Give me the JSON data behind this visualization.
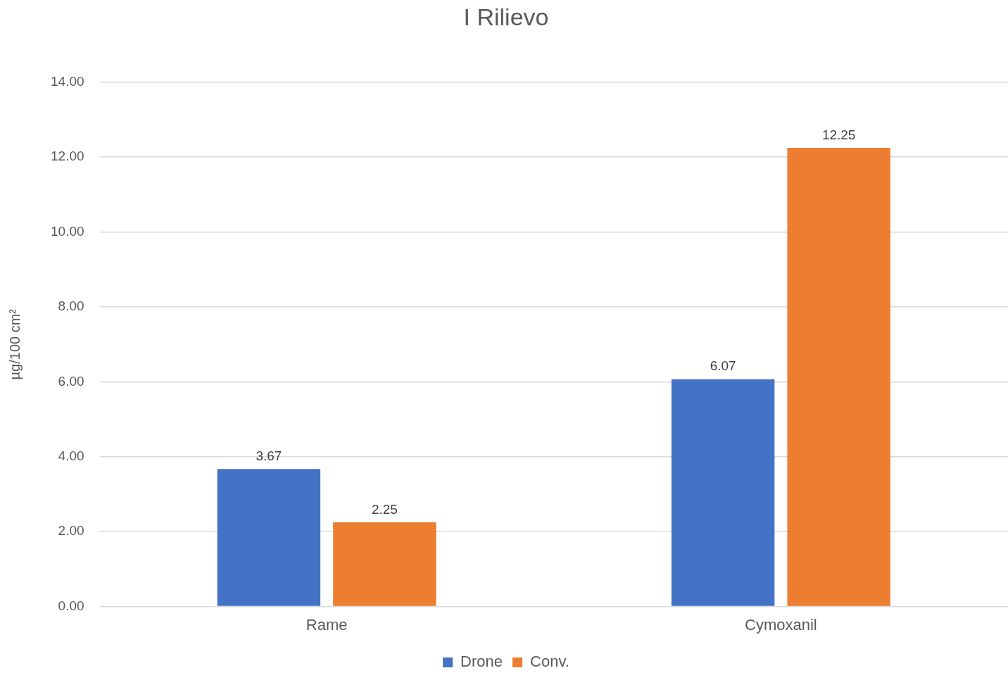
{
  "chart_data": {
    "type": "bar",
    "title": "I Rilievo",
    "ylabel": "µg/100 cm²",
    "categories": [
      "Rame",
      "Cymoxanil"
    ],
    "series": [
      {
        "name": "Drone",
        "color": "#4472c4",
        "values": [
          3.67,
          6.07
        ]
      },
      {
        "name": "Conv.",
        "color": "#ed7d31",
        "values": [
          2.25,
          12.25
        ]
      }
    ],
    "ylim": [
      0,
      14
    ],
    "yticks": [
      {
        "value": 0,
        "label": "0.00"
      },
      {
        "value": 2,
        "label": "2.00"
      },
      {
        "value": 4,
        "label": "4.00"
      },
      {
        "value": 6,
        "label": "6.00"
      },
      {
        "value": 8,
        "label": "8.00"
      },
      {
        "value": 10,
        "label": "10.00"
      },
      {
        "value": 12,
        "label": "12.00"
      },
      {
        "value": 14,
        "label": "14.00"
      }
    ],
    "grid": "y",
    "legend": "bottom",
    "data_labels": true
  }
}
